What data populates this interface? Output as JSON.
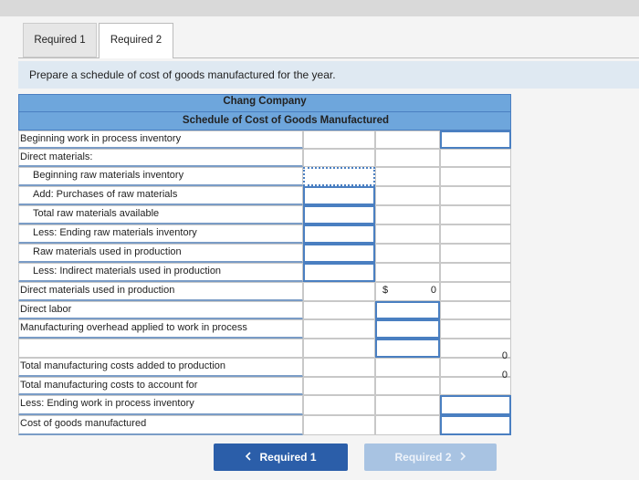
{
  "tabs": [
    "Required 1",
    "Required 2"
  ],
  "instruction": "Prepare a schedule of cost of goods manufactured for the year.",
  "table": {
    "company": "Chang Company",
    "title": "Schedule of Cost of Goods Manufactured",
    "rows": [
      {
        "label": "Beginning work in process inventory"
      },
      {
        "label": "Direct materials:"
      },
      {
        "label": "Beginning raw materials inventory"
      },
      {
        "label": "Add: Purchases of raw materials"
      },
      {
        "label": "Total raw materials available"
      },
      {
        "label": "Less: Ending raw materials inventory"
      },
      {
        "label": "Raw materials used in production"
      },
      {
        "label": "Less: Indirect materials used in production"
      },
      {
        "label": "Direct materials used in production",
        "currency": "$",
        "col2": 0
      },
      {
        "label": "Direct labor"
      },
      {
        "label": "Manufacturing overhead applied to work in process"
      },
      {},
      {
        "label": "Total manufacturing costs added to production",
        "col3": 0
      },
      {
        "label": "Total manufacturing costs to account for",
        "col3": 0
      },
      {
        "label": "Less: Ending work in process inventory"
      },
      {
        "label": "Cost of goods manufactured"
      }
    ]
  },
  "buttons": [
    "Required 1",
    "Required 2"
  ]
}
